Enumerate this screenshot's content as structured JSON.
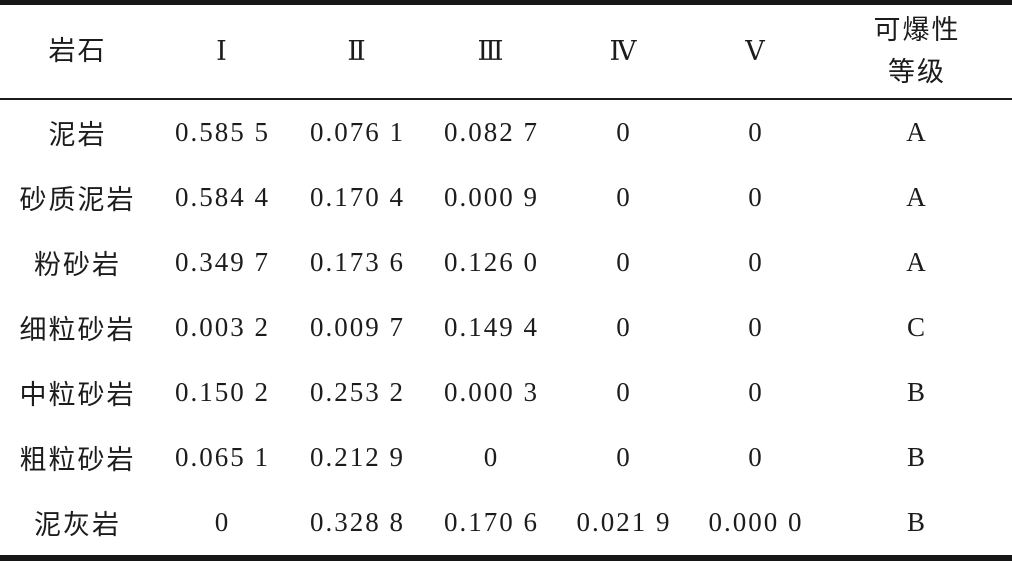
{
  "page": {
    "background_color": "#ffffff",
    "text_color": "#1c1c1c",
    "rule_color": "#161616"
  },
  "table": {
    "description": "rock-blastability-weight-table",
    "columns": {
      "rock": "岩石",
      "w1": "Ⅰ",
      "w2": "Ⅱ",
      "w3": "Ⅲ",
      "w4": "Ⅳ",
      "w5": "Ⅴ",
      "grade": "可爆性\n等级"
    },
    "rows": [
      [
        "泥岩",
        "0.585 5",
        "0.076 1",
        "0.082 7",
        "0",
        "0",
        "A"
      ],
      [
        "砂质泥岩",
        "0.584 4",
        "0.170 4",
        "0.000 9",
        "0",
        "0",
        "A"
      ],
      [
        "粉砂岩",
        "0.349 7",
        "0.173 6",
        "0.126 0",
        "0",
        "0",
        "A"
      ],
      [
        "细粒砂岩",
        "0.003 2",
        "0.009 7",
        "0.149 4",
        "0",
        "0",
        "C"
      ],
      [
        "中粒砂岩",
        "0.150 2",
        "0.253 2",
        "0.000 3",
        "0",
        "0",
        "B"
      ],
      [
        "粗粒砂岩",
        "0.065 1",
        "0.212 9",
        "0",
        "0",
        "0",
        "B"
      ],
      [
        "泥灰岩",
        "0",
        "0.328 8",
        "0.170 6",
        "0.021 9",
        "0.000 0",
        "B"
      ]
    ]
  }
}
